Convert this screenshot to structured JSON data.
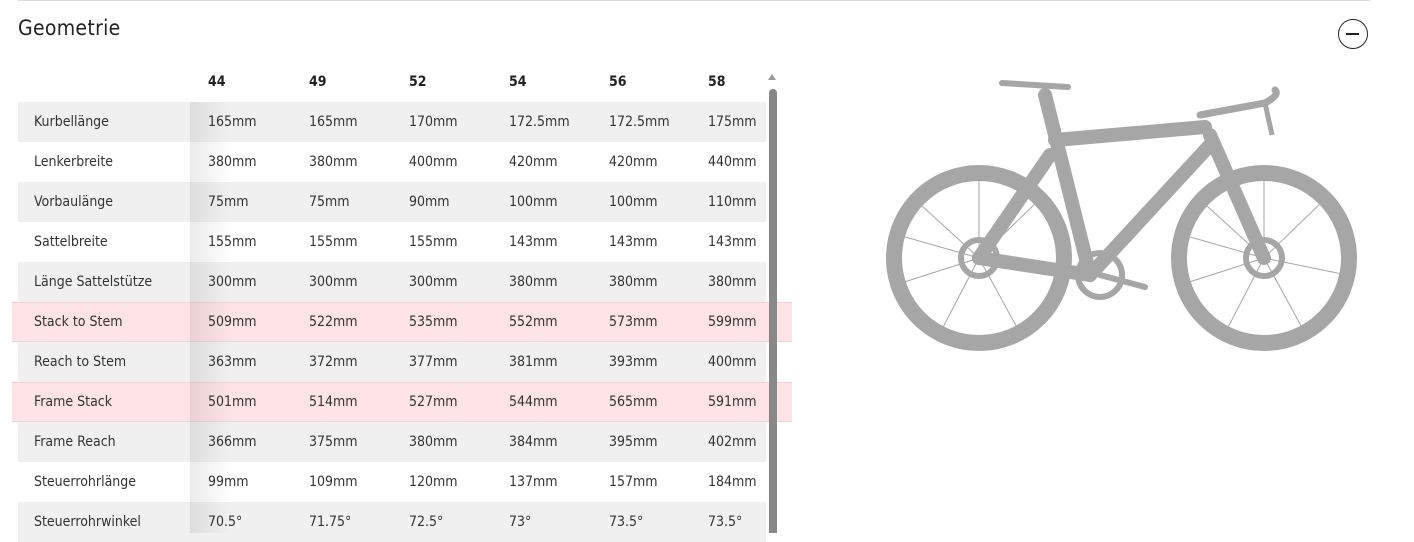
{
  "section": {
    "title": "Geometrie",
    "collapse_icon": "minus-circle-icon"
  },
  "table": {
    "sizes": [
      "44",
      "49",
      "52",
      "54",
      "56",
      "58"
    ],
    "rows": [
      {
        "label": "Kurbellänge",
        "values": [
          "165mm",
          "165mm",
          "170mm",
          "172.5mm",
          "172.5mm",
          "175mm"
        ],
        "highlight": false
      },
      {
        "label": "Lenkerbreite",
        "values": [
          "380mm",
          "380mm",
          "400mm",
          "420mm",
          "420mm",
          "440mm"
        ],
        "highlight": false
      },
      {
        "label": "Vorbaulänge",
        "values": [
          "75mm",
          "75mm",
          "90mm",
          "100mm",
          "100mm",
          "110mm"
        ],
        "highlight": false
      },
      {
        "label": "Sattelbreite",
        "values": [
          "155mm",
          "155mm",
          "155mm",
          "143mm",
          "143mm",
          "143mm"
        ],
        "highlight": false
      },
      {
        "label": "Länge Sattelstütze",
        "values": [
          "300mm",
          "300mm",
          "300mm",
          "380mm",
          "380mm",
          "380mm"
        ],
        "highlight": false
      },
      {
        "label": "Stack to Stem",
        "values": [
          "509mm",
          "522mm",
          "535mm",
          "552mm",
          "573mm",
          "599mm"
        ],
        "highlight": true
      },
      {
        "label": "Reach to Stem",
        "values": [
          "363mm",
          "372mm",
          "377mm",
          "381mm",
          "393mm",
          "400mm"
        ],
        "highlight": false
      },
      {
        "label": "Frame Stack",
        "values": [
          "501mm",
          "514mm",
          "527mm",
          "544mm",
          "565mm",
          "591mm"
        ],
        "highlight": true
      },
      {
        "label": "Frame Reach",
        "values": [
          "366mm",
          "375mm",
          "380mm",
          "384mm",
          "395mm",
          "402mm"
        ],
        "highlight": false
      },
      {
        "label": "Steuerrohrlänge",
        "values": [
          "99mm",
          "109mm",
          "120mm",
          "137mm",
          "157mm",
          "184mm"
        ],
        "highlight": false
      },
      {
        "label": "Steuerrohrwinkel",
        "values": [
          "70.5°",
          "71.75°",
          "72.5°",
          "73°",
          "73.5°",
          "73.5°"
        ],
        "highlight": false
      }
    ]
  },
  "colors": {
    "highlight_row": "#fde3e5",
    "stripe": "#f0f0f0",
    "bike": "#a6a6a6"
  }
}
